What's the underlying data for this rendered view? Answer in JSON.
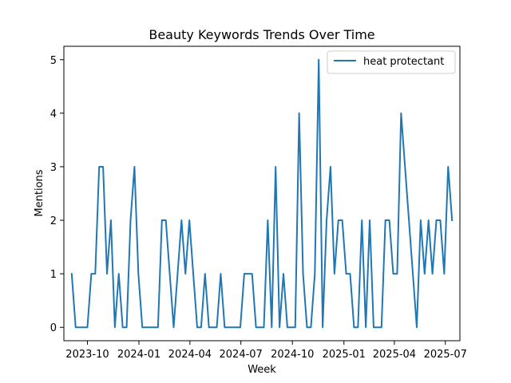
{
  "chart_data": {
    "type": "line",
    "title": "Beauty Keywords Trends Over Time",
    "xlabel": "Week",
    "ylabel": "Mentions",
    "x_start": "2023-09-03",
    "x_step_days": 7,
    "xlim": [
      "2023-08-20",
      "2025-07-27"
    ],
    "ylim": [
      -0.25,
      5.25
    ],
    "x_ticks": [
      "2023-10-01",
      "2024-01-01",
      "2024-04-01",
      "2024-07-01",
      "2024-10-01",
      "2025-01-01",
      "2025-04-01",
      "2025-07-01"
    ],
    "x_tick_labels": [
      "2023-10",
      "2024-01",
      "2024-04",
      "2024-07",
      "2024-10",
      "2025-01",
      "2025-04",
      "2025-07"
    ],
    "y_ticks": [
      0,
      1,
      2,
      3,
      4,
      5
    ],
    "y_tick_labels": [
      "0",
      "1",
      "2",
      "3",
      "4",
      "5"
    ],
    "grid": false,
    "legend_position": "upper right",
    "series": [
      {
        "name": "heat protectant",
        "color": "#1f77b4",
        "values": [
          1,
          0,
          0,
          0,
          0,
          1,
          1,
          3,
          3,
          1,
          2,
          0,
          1,
          0,
          0,
          2,
          3,
          1,
          0,
          0,
          0,
          0,
          0,
          2,
          2,
          1,
          0,
          1,
          2,
          1,
          2,
          1,
          0,
          0,
          1,
          0,
          0,
          0,
          1,
          0,
          0,
          0,
          0,
          0,
          1,
          1,
          1,
          0,
          0,
          0,
          2,
          0,
          3,
          0,
          1,
          0,
          0,
          0,
          4,
          1,
          0,
          0,
          1,
          5,
          0,
          2,
          3,
          1,
          2,
          2,
          1,
          1,
          0,
          0,
          2,
          0,
          2,
          0,
          0,
          0,
          2,
          2,
          1,
          1,
          4,
          3,
          2,
          1,
          0,
          2,
          1,
          2,
          1,
          2,
          2,
          1,
          3,
          2
        ]
      }
    ]
  }
}
